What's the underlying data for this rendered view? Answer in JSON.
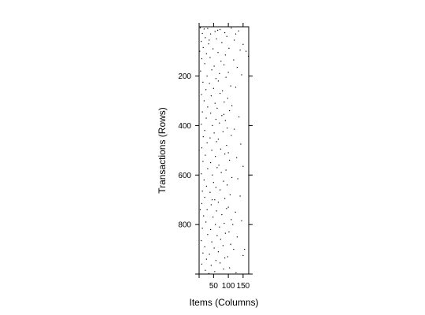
{
  "chart_data": {
    "type": "scatter",
    "title": "",
    "xlabel": "Items (Columns)",
    "ylabel": "Transactions (Rows)",
    "xlim": [
      1,
      169
    ],
    "ylim": [
      1,
      1000
    ],
    "y_reversed": true,
    "x_ticks": [
      50,
      100,
      150
    ],
    "x_tick_labels": [
      "50",
      "100",
      "150"
    ],
    "y_ticks": [
      200,
      400,
      600,
      800
    ],
    "y_tick_labels": [
      "200",
      "400",
      "600",
      "800"
    ],
    "grid": false,
    "marker_color": "#000000",
    "points": [
      [
        5,
        5
      ],
      [
        18,
        10
      ],
      [
        30,
        8
      ],
      [
        72,
        12
      ],
      [
        110,
        6
      ],
      [
        55,
        20
      ],
      [
        12,
        28
      ],
      [
        40,
        30
      ],
      [
        88,
        25
      ],
      [
        135,
        18
      ],
      [
        22,
        45
      ],
      [
        60,
        50
      ],
      [
        95,
        40
      ],
      [
        8,
        60
      ],
      [
        33,
        70
      ],
      [
        78,
        65
      ],
      [
        120,
        55
      ],
      [
        150,
        72
      ],
      [
        15,
        85
      ],
      [
        48,
        90
      ],
      [
        102,
        88
      ],
      [
        140,
        95
      ],
      [
        26,
        110
      ],
      [
        65,
        105
      ],
      [
        90,
        115
      ],
      [
        160,
        100
      ],
      [
        10,
        130
      ],
      [
        38,
        125
      ],
      [
        75,
        140
      ],
      [
        118,
        135
      ],
      [
        20,
        150
      ],
      [
        52,
        160
      ],
      [
        85,
        155
      ],
      [
        130,
        165
      ],
      [
        6,
        180
      ],
      [
        44,
        175
      ],
      [
        70,
        190
      ],
      [
        100,
        185
      ],
      [
        28,
        200
      ],
      [
        58,
        210
      ],
      [
        92,
        205
      ],
      [
        145,
        195
      ],
      [
        14,
        225
      ],
      [
        36,
        230
      ],
      [
        66,
        220
      ],
      [
        108,
        240
      ],
      [
        24,
        255
      ],
      [
        50,
        250
      ],
      [
        80,
        260
      ],
      [
        125,
        245
      ],
      [
        9,
        275
      ],
      [
        42,
        280
      ],
      [
        72,
        270
      ],
      [
        98,
        290
      ],
      [
        18,
        300
      ],
      [
        55,
        310
      ],
      [
        86,
        305
      ],
      [
        30,
        325
      ],
      [
        62,
        330
      ],
      [
        112,
        320
      ],
      [
        12,
        345
      ],
      [
        40,
        350
      ],
      [
        78,
        360
      ],
      [
        104,
        340
      ],
      [
        25,
        370
      ],
      [
        58,
        375
      ],
      [
        90,
        380
      ],
      [
        136,
        365
      ],
      [
        8,
        395
      ],
      [
        46,
        400
      ],
      [
        70,
        390
      ],
      [
        96,
        410
      ],
      [
        20,
        420
      ],
      [
        52,
        430
      ],
      [
        82,
        425
      ],
      [
        120,
        415
      ],
      [
        15,
        445
      ],
      [
        38,
        450
      ],
      [
        66,
        455
      ],
      [
        110,
        440
      ],
      [
        28,
        470
      ],
      [
        60,
        465
      ],
      [
        94,
        480
      ],
      [
        142,
        475
      ],
      [
        10,
        490
      ],
      [
        44,
        500
      ],
      [
        74,
        495
      ],
      [
        100,
        510
      ],
      [
        22,
        520
      ],
      [
        56,
        525
      ],
      [
        88,
        515
      ],
      [
        128,
        530
      ],
      [
        14,
        545
      ],
      [
        40,
        550
      ],
      [
        68,
        560
      ],
      [
        104,
        540
      ],
      [
        30,
        575
      ],
      [
        62,
        570
      ],
      [
        92,
        580
      ],
      [
        150,
        565
      ],
      [
        8,
        595
      ],
      [
        46,
        600
      ],
      [
        76,
        590
      ],
      [
        112,
        610
      ],
      [
        18,
        620
      ],
      [
        50,
        630
      ],
      [
        84,
        625
      ],
      [
        132,
        615
      ],
      [
        26,
        645
      ],
      [
        58,
        650
      ],
      [
        96,
        640
      ],
      [
        12,
        665
      ],
      [
        38,
        670
      ],
      [
        72,
        660
      ],
      [
        106,
        680
      ],
      [
        20,
        690
      ],
      [
        54,
        700
      ],
      [
        88,
        695
      ],
      [
        140,
        685
      ],
      [
        10,
        715
      ],
      [
        42,
        720
      ],
      [
        66,
        710
      ],
      [
        100,
        730
      ],
      [
        28,
        740
      ],
      [
        60,
        745
      ],
      [
        94,
        735
      ],
      [
        124,
        750
      ],
      [
        16,
        765
      ],
      [
        48,
        770
      ],
      [
        78,
        760
      ],
      [
        110,
        780
      ],
      [
        24,
        790
      ],
      [
        56,
        800
      ],
      [
        86,
        795
      ],
      [
        145,
        785
      ],
      [
        12,
        815
      ],
      [
        40,
        820
      ],
      [
        70,
        810
      ],
      [
        102,
        830
      ],
      [
        30,
        840
      ],
      [
        62,
        845
      ],
      [
        90,
        835
      ],
      [
        130,
        850
      ],
      [
        8,
        865
      ],
      [
        44,
        870
      ],
      [
        74,
        860
      ],
      [
        108,
        880
      ],
      [
        20,
        890
      ],
      [
        52,
        895
      ],
      [
        82,
        885
      ],
      [
        118,
        900
      ],
      [
        14,
        915
      ],
      [
        36,
        920
      ],
      [
        66,
        910
      ],
      [
        98,
        930
      ],
      [
        26,
        940
      ],
      [
        58,
        945
      ],
      [
        88,
        935
      ],
      [
        150,
        925
      ],
      [
        10,
        960
      ],
      [
        42,
        965
      ],
      [
        72,
        955
      ],
      [
        104,
        975
      ],
      [
        22,
        985
      ],
      [
        54,
        990
      ],
      [
        84,
        980
      ],
      [
        126,
        995
      ],
      [
        34,
        998
      ],
      [
        64,
        15
      ],
      [
        125,
        30
      ],
      [
        3,
        100
      ],
      [
        168,
        120
      ],
      [
        1,
        500
      ],
      [
        169,
        600
      ],
      [
        45,
        700
      ],
      [
        115,
        800
      ],
      [
        155,
        900
      ],
      [
        35,
        55
      ],
      [
        85,
        355
      ],
      [
        5,
        740
      ]
    ]
  }
}
